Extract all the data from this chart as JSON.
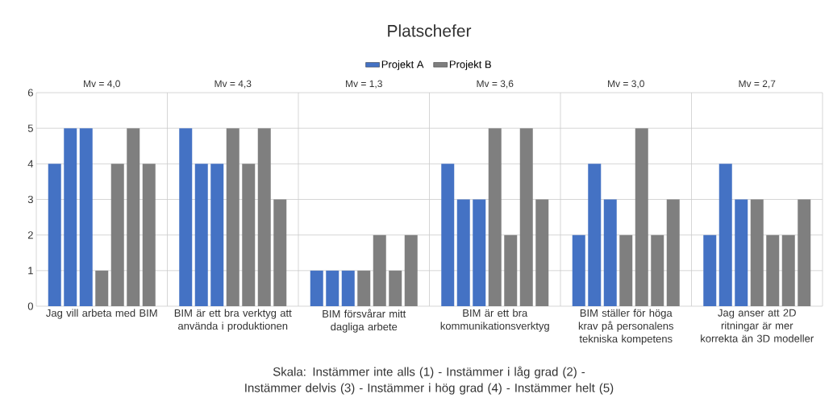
{
  "chart_data": {
    "type": "bar",
    "title": "Platschefer",
    "categories": [
      "Jag vill arbeta med BIM",
      "BIM är ett bra verktyg att använda i produktionen",
      "BIM försvårar mitt dagliga arbete",
      "BIM är ett bra kommunikationsverktyg",
      "BIM ställer för höga krav på personalens tekniska kompetens",
      "Jag anser att 2D ritningar är mer korrekta än 3D modeller"
    ],
    "series": [
      {
        "name": "Projekt A",
        "color": "#4472c4",
        "values": [
          4,
          5,
          1,
          4,
          2,
          2
        ]
      },
      {
        "color": "#4472c4",
        "values": [
          5,
          4,
          1,
          3,
          4,
          4
        ]
      },
      {
        "color": "#4472c4",
        "values": [
          5,
          4,
          1,
          3,
          3,
          3
        ]
      },
      {
        "name": "Projekt B",
        "color": "#7f7f7f",
        "values": [
          1,
          5,
          1,
          5,
          2,
          3
        ]
      },
      {
        "color": "#7f7f7f",
        "values": [
          4,
          4,
          2,
          2,
          5,
          2
        ]
      },
      {
        "color": "#7f7f7f",
        "values": [
          5,
          5,
          1,
          5,
          2,
          2
        ]
      },
      {
        "color": "#7f7f7f",
        "values": [
          4,
          3,
          2,
          3,
          3,
          3
        ]
      }
    ],
    "ylim": [
      0,
      6
    ],
    "yticks": [
      0,
      1,
      2,
      3,
      4,
      5,
      6
    ],
    "grid": true,
    "legend": "top",
    "annotations": [
      "Mv = 4,0",
      "Mv = 4,3",
      "Mv = 1,3",
      "Mv = 3,6",
      "Mv = 3,0",
      "Mv = 2,7",
      "Skala: Instämmer inte alls (1) - Instämmer i låg grad (2) - Instämmer delvis (3) - Instämmer i hög grad (4) - Instämmer helt (5)"
    ]
  }
}
